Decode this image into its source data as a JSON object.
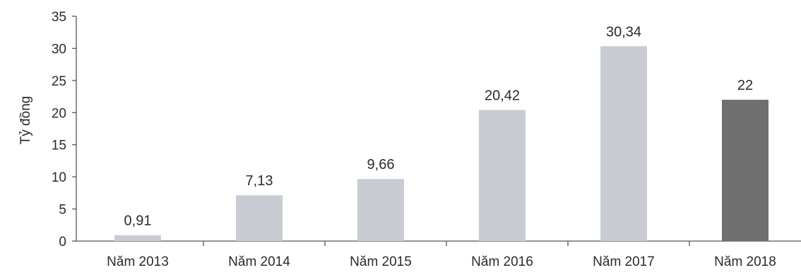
{
  "chart_data": {
    "type": "bar",
    "ylabel": "Tỷ đồng",
    "xlabel": "",
    "title": "",
    "ylim": [
      0,
      35
    ],
    "yticks": [
      0,
      5,
      10,
      15,
      20,
      25,
      30,
      35
    ],
    "categories": [
      "Năm 2013",
      "Năm 2014",
      "Năm 2015",
      "Năm 2016",
      "Năm 2017",
      "Năm 2018"
    ],
    "values": [
      0.91,
      7.13,
      9.66,
      20.42,
      30.34,
      22
    ],
    "value_labels": [
      "0,91",
      "7,13",
      "9,66",
      "20,42",
      "30,34",
      "22"
    ],
    "colors": {
      "bar": "#c9ccd3",
      "highlight_bar": "#6f6f6f",
      "axis": "#555555",
      "text": "#2b2b2b"
    },
    "highlight_index": 5,
    "grid": false,
    "legend": "none"
  }
}
